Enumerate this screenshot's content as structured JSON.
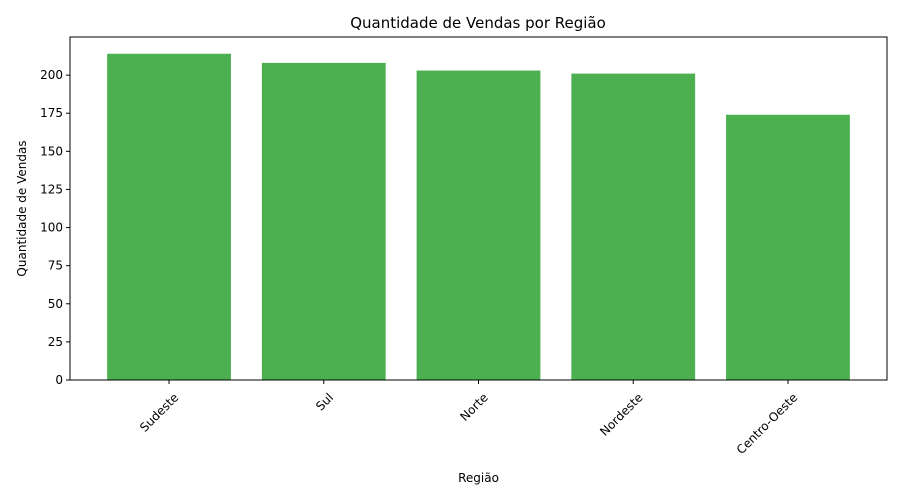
{
  "chart_data": {
    "type": "bar",
    "title": "Quantidade de Vendas por Região",
    "xlabel": "Região",
    "ylabel": "Quantidade de Vendas",
    "categories": [
      "Sudeste",
      "Sul",
      "Norte",
      "Nordeste",
      "Centro-Oeste"
    ],
    "values": [
      214,
      208,
      203,
      201,
      174
    ],
    "ylim": [
      0,
      225
    ],
    "yticks": [
      0,
      25,
      50,
      75,
      100,
      125,
      150,
      175,
      200
    ],
    "xtick_rotation": "45 degrees",
    "grid": false,
    "legend": "none",
    "bar_color": "#4caf50"
  }
}
